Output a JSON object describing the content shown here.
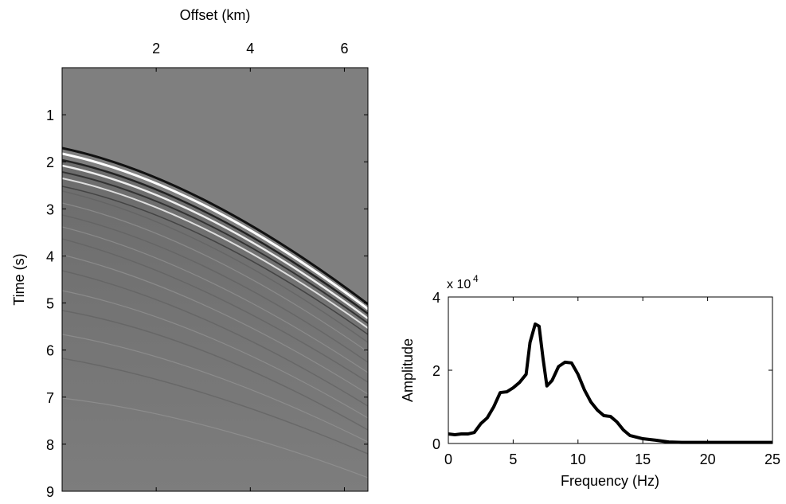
{
  "chart_data": [
    {
      "type": "image",
      "xlabel": "Offset (km)",
      "ylabel": "Time (s)",
      "xlim": [
        0,
        6.5
      ],
      "xticks": [
        2,
        4,
        6
      ],
      "x_axis_position": "top",
      "ylim": [
        0,
        9
      ],
      "yticks": [
        1,
        2,
        3,
        4,
        5,
        6,
        7,
        8,
        9
      ],
      "y_inverted": true
    },
    {
      "type": "line",
      "xlabel": "Frequency (Hz)",
      "ylabel": "Amplitude",
      "axis_multiplier": "x 10",
      "axis_multiplier_exponent": "4",
      "xlim": [
        0,
        25
      ],
      "xticks": [
        0,
        5,
        10,
        15,
        20,
        25
      ],
      "ylim": [
        0,
        40000
      ],
      "yticks": [
        0,
        {
          "value": 20000,
          "label": "2"
        },
        {
          "value": 40000,
          "label": "4"
        }
      ],
      "color": "#000000",
      "x": [
        0,
        0.5,
        1,
        1.5,
        2,
        2.5,
        3,
        3.5,
        4,
        4.5,
        5,
        5.5,
        6,
        6.3,
        6.7,
        7,
        7.3,
        7.6,
        8,
        8.5,
        9,
        9.5,
        10,
        10.5,
        11,
        11.5,
        12,
        12.5,
        13,
        13.5,
        14,
        15,
        16,
        17,
        18,
        20,
        22,
        25
      ],
      "values": [
        2600,
        2400,
        2600,
        2600,
        3000,
        5400,
        7000,
        10000,
        13900,
        14100,
        15200,
        16700,
        18900,
        27600,
        32600,
        32000,
        23300,
        15700,
        17200,
        21000,
        22200,
        22000,
        18900,
        14600,
        11300,
        9100,
        7600,
        7400,
        5900,
        3700,
        2200,
        1300,
        900,
        400,
        300,
        300,
        300,
        300
      ]
    }
  ]
}
